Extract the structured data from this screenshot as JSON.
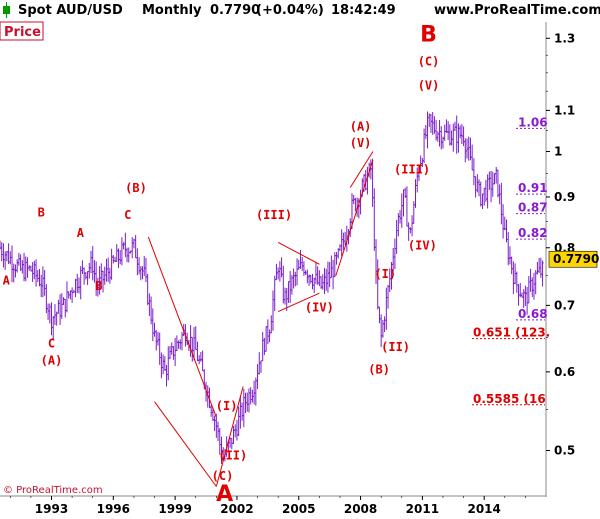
{
  "header": {
    "instrument": "Spot AUD/USD",
    "timeframe": "Monthly",
    "price": "0.7790",
    "change": "(+0.04%)",
    "time": "18:42:49",
    "site": "www.ProRealTime.com"
  },
  "panel_label": "Price",
  "source_credit": "© ProRealTime.com",
  "colors": {
    "up": "#009900",
    "candle": "#7a1ec8",
    "wave": "#e00000",
    "fib": "#8a1ad0",
    "current_bg": "#ffd500"
  },
  "chart_data": {
    "type": "bar",
    "instrument": "Spot AUD/USD",
    "interval": "Monthly",
    "x_ticks": [
      "1993",
      "1996",
      "1999",
      "2002",
      "2005",
      "2008",
      "2011",
      "2014"
    ],
    "y_ticks": [
      "0.5",
      "0.6",
      "0.7",
      "0.8",
      "0.9",
      "1",
      "1.1",
      "1.3"
    ],
    "ylim": [
      0.45,
      1.35
    ],
    "xlim": [
      1990.5,
      2017.0
    ],
    "y_scale": "log",
    "current_value": "0.7790",
    "price_path": [
      [
        1990.5,
        0.8
      ],
      [
        1991.0,
        0.78
      ],
      [
        1991.5,
        0.76
      ],
      [
        1992.0,
        0.76
      ],
      [
        1992.5,
        0.74
      ],
      [
        1993.0,
        0.68
      ],
      [
        1993.6,
        0.7
      ],
      [
        1994.0,
        0.73
      ],
      [
        1994.6,
        0.76
      ],
      [
        1995.0,
        0.77
      ],
      [
        1995.2,
        0.73
      ],
      [
        1995.6,
        0.75
      ],
      [
        1996.0,
        0.77
      ],
      [
        1996.6,
        0.8
      ],
      [
        1997.0,
        0.8
      ],
      [
        1997.5,
        0.75
      ],
      [
        1997.8,
        0.69
      ],
      [
        1998.0,
        0.65
      ],
      [
        1998.5,
        0.6
      ],
      [
        1998.9,
        0.63
      ],
      [
        1999.5,
        0.66
      ],
      [
        2000.0,
        0.63
      ],
      [
        2000.5,
        0.58
      ],
      [
        2001.0,
        0.53
      ],
      [
        2001.3,
        0.49
      ],
      [
        2001.7,
        0.51
      ],
      [
        2002.0,
        0.53
      ],
      [
        2002.4,
        0.56
      ],
      [
        2002.8,
        0.58
      ],
      [
        2003.2,
        0.63
      ],
      [
        2003.6,
        0.67
      ],
      [
        2004.0,
        0.77
      ],
      [
        2004.3,
        0.71
      ],
      [
        2004.7,
        0.74
      ],
      [
        2005.2,
        0.77
      ],
      [
        2005.6,
        0.75
      ],
      [
        2006.1,
        0.73
      ],
      [
        2006.5,
        0.75
      ],
      [
        2006.9,
        0.78
      ],
      [
        2007.3,
        0.83
      ],
      [
        2007.6,
        0.88
      ],
      [
        2007.9,
        0.9
      ],
      [
        2008.2,
        0.93
      ],
      [
        2008.5,
        0.96
      ],
      [
        2008.8,
        0.7
      ],
      [
        2009.0,
        0.65
      ],
      [
        2009.4,
        0.74
      ],
      [
        2009.8,
        0.85
      ],
      [
        2010.1,
        0.9
      ],
      [
        2010.4,
        0.82
      ],
      [
        2010.8,
        0.96
      ],
      [
        2011.0,
        1.0
      ],
      [
        2011.3,
        1.07
      ],
      [
        2011.7,
        1.05
      ],
      [
        2012.1,
        1.04
      ],
      [
        2012.6,
        1.04
      ],
      [
        2013.0,
        1.04
      ],
      [
        2013.4,
        0.96
      ],
      [
        2013.8,
        0.9
      ],
      [
        2014.2,
        0.92
      ],
      [
        2014.6,
        0.94
      ],
      [
        2015.0,
        0.82
      ],
      [
        2015.5,
        0.74
      ],
      [
        2016.0,
        0.71
      ],
      [
        2016.5,
        0.75
      ],
      [
        2016.9,
        0.76
      ]
    ],
    "wave_labels": [
      {
        "text": "A",
        "x": 1990.8,
        "y": 0.735
      },
      {
        "text": "B",
        "x": 1992.5,
        "y": 0.86
      },
      {
        "text": "C",
        "x": 1993.0,
        "y": 0.635
      },
      {
        "text": "(A)",
        "x": 1993.0,
        "y": 0.61
      },
      {
        "text": "A",
        "x": 1994.4,
        "y": 0.82
      },
      {
        "text": "B",
        "x": 1995.3,
        "y": 0.725
      },
      {
        "text": "C",
        "x": 1996.7,
        "y": 0.855
      },
      {
        "text": "(B)",
        "x": 1997.1,
        "y": 0.91
      },
      {
        "text": "(C)",
        "x": 2001.3,
        "y": 0.467
      },
      {
        "text": "(II)",
        "x": 2001.8,
        "y": 0.49
      },
      {
        "text": "(I)",
        "x": 2001.5,
        "y": 0.549
      },
      {
        "text": "(III)",
        "x": 2003.8,
        "y": 0.855
      },
      {
        "text": "(IV)",
        "x": 2006.0,
        "y": 0.69
      },
      {
        "text": "(A)",
        "x": 2008.0,
        "y": 1.05
      },
      {
        "text": "(V)",
        "x": 2008.0,
        "y": 1.01
      },
      {
        "text": "(B)",
        "x": 2008.9,
        "y": 0.598
      },
      {
        "text": "(I)",
        "x": 2009.2,
        "y": 0.746
      },
      {
        "text": "(II)",
        "x": 2009.7,
        "y": 0.63
      },
      {
        "text": "(III)",
        "x": 2010.5,
        "y": 0.95
      },
      {
        "text": "(IV)",
        "x": 2011.0,
        "y": 0.797
      },
      {
        "text": "(V)",
        "x": 2011.3,
        "y": 1.155
      },
      {
        "text": "(C)",
        "x": 2011.3,
        "y": 1.22
      },
      {
        "text": "B",
        "x": 2011.3,
        "y": 1.29
      },
      {
        "text": "A",
        "x": 2001.4,
        "y": 0.445
      }
    ],
    "trend_lines": [
      {
        "from": [
          1997.7,
          0.82
        ],
        "to": [
          2001.0,
          0.54
        ]
      },
      {
        "from": [
          1998.0,
          0.56
        ],
        "to": [
          2001.0,
          0.46
        ]
      },
      {
        "from": [
          2001.0,
          0.46
        ],
        "to": [
          2002.3,
          0.58
        ]
      },
      {
        "from": [
          2004.0,
          0.69
        ],
        "to": [
          2006.0,
          0.72
        ]
      },
      {
        "from": [
          2004.0,
          0.81
        ],
        "to": [
          2006.0,
          0.77
        ]
      },
      {
        "from": [
          2006.8,
          0.75
        ],
        "to": [
          2008.6,
          0.98
        ]
      },
      {
        "from": [
          2007.5,
          0.92
        ],
        "to": [
          2008.6,
          1.0
        ]
      }
    ],
    "fib_purple": [
      {
        "label": "1.06",
        "y": 1.06
      },
      {
        "label": "0.91",
        "y": 0.91
      },
      {
        "label": "0.87",
        "y": 0.87
      },
      {
        "label": "0.82",
        "y": 0.82
      },
      {
        "label": "0.68",
        "y": 0.68
      }
    ],
    "fib_red": [
      {
        "label": "0.651 (123.",
        "y": 0.651
      },
      {
        "label": "0.5585 (16",
        "y": 0.5585
      }
    ]
  }
}
